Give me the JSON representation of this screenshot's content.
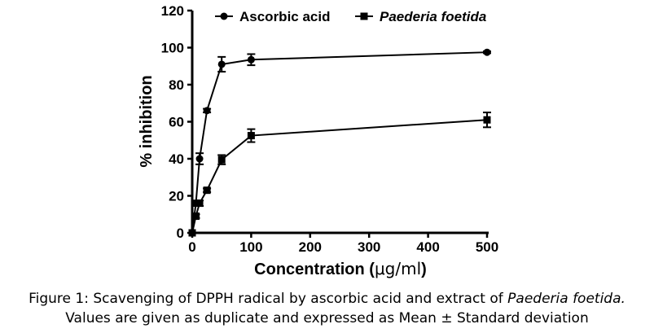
{
  "chart_data": {
    "type": "line",
    "xlabel": "Concentration (",
    "xlabel_unit": "μg/ml",
    "xlabel_close": ")",
    "ylabel": "% inhibition",
    "xlim": [
      0,
      500
    ],
    "ylim": [
      0,
      120
    ],
    "x_ticks": [
      0,
      100,
      200,
      300,
      400,
      500
    ],
    "y_ticks": [
      0,
      20,
      40,
      60,
      80,
      100,
      120
    ],
    "legend_position": "top",
    "series": [
      {
        "name": "Ascorbic acid",
        "marker": "circle",
        "italic": false,
        "x": [
          0,
          6.25,
          12.5,
          25,
          50,
          100,
          500
        ],
        "y": [
          0,
          16,
          40,
          66,
          91,
          93.5,
          97.5
        ],
        "err": [
          0,
          1.5,
          3,
          1,
          4,
          3,
          0.5
        ]
      },
      {
        "name": "Paederia foetida",
        "marker": "square",
        "italic": true,
        "x": [
          0,
          6.25,
          12.5,
          25,
          50,
          100,
          500
        ],
        "y": [
          0,
          9,
          16,
          23,
          39.5,
          52.5,
          61
        ],
        "err": [
          0,
          1,
          1.5,
          1,
          2.5,
          3.5,
          4
        ]
      }
    ]
  },
  "caption": {
    "line1_prefix": "Figure 1: Scavenging of DPPH radical by ascorbic acid and extract of ",
    "line1_species": "Paederia foetida.",
    "line2": "Values are given as duplicate and expressed as Mean ± Standard deviation"
  }
}
